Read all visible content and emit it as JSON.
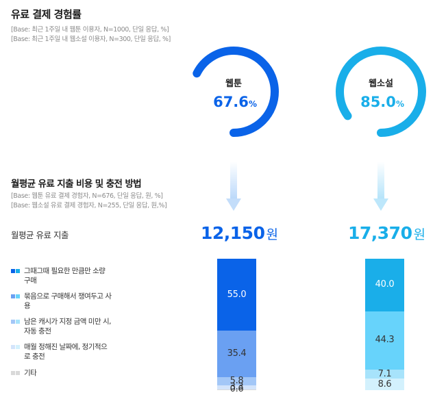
{
  "section1": {
    "title": "유료 결제 경험률",
    "base_lines": [
      "[Base: 최근 1주일 내 웹툰 이용자, N=1000, 단일 응답, %]",
      "[Base: 최근 1주일 내 웹소설 이용자, N=300, 단일 응답, %]"
    ]
  },
  "section2": {
    "title": "월평균 유료 지출 비용 및 충전 방법",
    "base_lines": [
      "[Base: 웹툰 유료 결제 경험자, N=676, 단일 응답, 원, %]",
      "[Base: 웹소설 유료 결제 경험자, N=255, 단일 응답, 원,%]"
    ],
    "spend_label": "월평균 유료 지출"
  },
  "colors": {
    "webtoon": "#0a63e8",
    "webnovel": "#19aee9",
    "ring_track": "#e8eef6"
  },
  "chart_data": [
    {
      "type": "pie",
      "title": "유료 결제 경험률",
      "series": [
        {
          "name": "웹툰",
          "value": 67.6,
          "unit": "%"
        },
        {
          "name": "웹소설",
          "value": 85.0,
          "unit": "%"
        }
      ],
      "value_labels": [
        "67.6",
        "85.0"
      ],
      "unit": "%"
    },
    {
      "type": "bar",
      "stacked": true,
      "title": "월평균 유료 지출 비용 및 충전 방법",
      "categories": [
        "웹툰",
        "웹소설"
      ],
      "totals": [
        {
          "value": "12,150",
          "unit": "원"
        },
        {
          "value": "17,370",
          "unit": "원"
        }
      ],
      "legend": [
        "그때그때 필요한 만큼만 소량 구매",
        "묶음으로 구매해서 쟁여두고 사용",
        "남은 캐시가 지정 금액 미만 시, 자동 충전",
        "매월 정해진 날짜에, 정기적으로 충전",
        "기타"
      ],
      "series": [
        {
          "name": "그때그때 필요한 만큼만 소량 구매",
          "values": [
            55.0,
            40.0
          ],
          "labels": [
            "55.0",
            "40.0"
          ]
        },
        {
          "name": "묶음으로 구매해서 쟁여두고 사용",
          "values": [
            35.4,
            44.3
          ],
          "labels": [
            "35.4",
            "44.3"
          ]
        },
        {
          "name": "남은 캐시가 지정 금액 미만 시, 자동 충전",
          "values": [
            5.8,
            7.1
          ],
          "labels": [
            "5.8",
            "7.1"
          ]
        },
        {
          "name": "매월 정해진 날짜에, 정기적으로 충전",
          "values": [
            3.3,
            8.6
          ],
          "labels": [
            "3.3",
            "8.6"
          ]
        },
        {
          "name": "기타",
          "values": [
            0.6,
            0.0
          ],
          "labels": [
            "0.6",
            ""
          ]
        }
      ],
      "segment_colors": [
        [
          "#0a63e8",
          "#1aaee9"
        ],
        [
          "#6aa0f2",
          "#67d3fb"
        ],
        [
          "#a3c7f7",
          "#a7e3fb"
        ],
        [
          "#d3e4fb",
          "#d3f1fd"
        ],
        [
          "#d9d9d9",
          "#d9d9d9"
        ]
      ],
      "legend_swatches": [
        [
          "#0a63e8",
          "#1aaee9"
        ],
        [
          "#6aa0f2",
          "#67d3fb"
        ],
        [
          "#a3c7f7",
          "#a7e3fb"
        ],
        [
          "#d3e4fb",
          "#d3f1fd"
        ],
        [
          "#d9d9d9",
          "#d9d9d9"
        ]
      ]
    }
  ]
}
